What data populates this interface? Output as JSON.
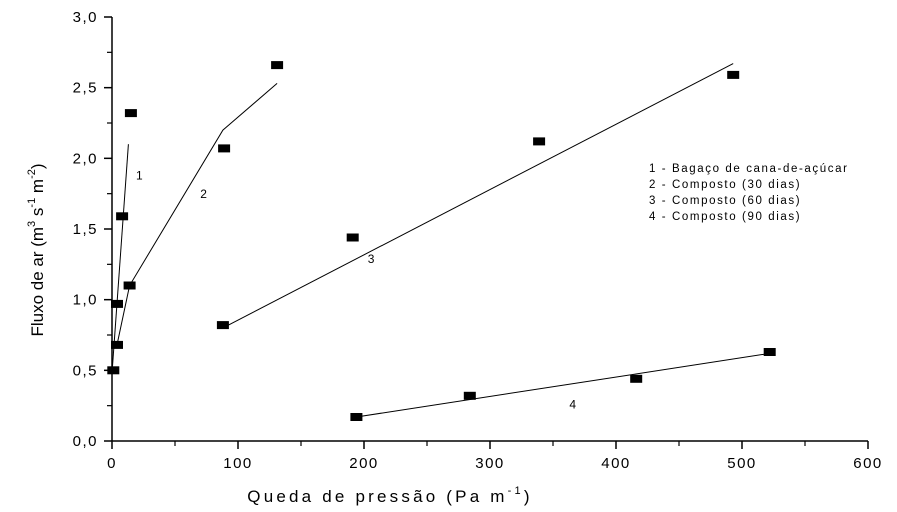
{
  "chart_data": {
    "type": "scatter",
    "xlabel": "Queda de pressão (Pa m",
    "xlabel_sup": "-1",
    "xlabel_end": ")",
    "ylabel": "Fluxo de ar (m",
    "ylabel_sup1": "3",
    "ylabel_mid1": " s",
    "ylabel_sup2": "-1",
    "ylabel_mid2": " m",
    "ylabel_sup3": "-2",
    "ylabel_end": ")",
    "xlim": [
      0,
      600
    ],
    "ylim": [
      0,
      3
    ],
    "x_ticks": [
      0,
      100,
      200,
      300,
      400,
      500,
      600
    ],
    "x_tick_labels": [
      "0",
      "100",
      "200",
      "300",
      "400",
      "500",
      "600"
    ],
    "y_ticks": [
      0,
      0.5,
      1,
      1.5,
      2,
      2.5,
      3
    ],
    "y_tick_labels": [
      "0,0",
      "0,5",
      "1,0",
      "1,5",
      "2,0",
      "2,5",
      "3,0"
    ],
    "grid": false,
    "legend": {
      "position": "right",
      "entries": [
        "1 - Bagaço de cana-de-açúcar",
        "2 - Composto (30 dias)",
        "3 - Composto (60 dias)",
        "4 - Composto (90 dias)"
      ]
    },
    "series": [
      {
        "label": "1",
        "label_pos": [
          19,
          1.85
        ],
        "points": [
          [
            1,
            0.5
          ],
          [
            4,
            0.68
          ],
          [
            4,
            0.97
          ],
          [
            8,
            1.59
          ],
          [
            15,
            2.32
          ]
        ],
        "fit": [
          [
            0,
            0.48
          ],
          [
            13,
            2.1
          ]
        ]
      },
      {
        "label": "2",
        "label_pos": [
          70,
          1.72
        ],
        "points": [
          [
            14,
            1.1
          ],
          [
            89,
            2.07
          ],
          [
            131,
            2.66
          ]
        ],
        "fit": [
          [
            4,
            0.68
          ],
          [
            14,
            1.1
          ],
          [
            88,
            2.2
          ],
          [
            131,
            2.53
          ]
        ]
      },
      {
        "label": "3",
        "label_pos": [
          203,
          1.26
        ],
        "points": [
          [
            88,
            0.82
          ],
          [
            191,
            1.44
          ],
          [
            339,
            2.12
          ],
          [
            493,
            2.59
          ]
        ],
        "fit": [
          [
            88,
            0.8
          ],
          [
            493,
            2.67
          ]
        ]
      },
      {
        "label": "4",
        "label_pos": [
          363,
          0.23
        ],
        "points": [
          [
            194,
            0.17
          ],
          [
            284,
            0.32
          ],
          [
            416,
            0.44
          ],
          [
            522,
            0.63
          ]
        ],
        "fit": [
          [
            194,
            0.17
          ],
          [
            522,
            0.62
          ]
        ]
      }
    ]
  }
}
